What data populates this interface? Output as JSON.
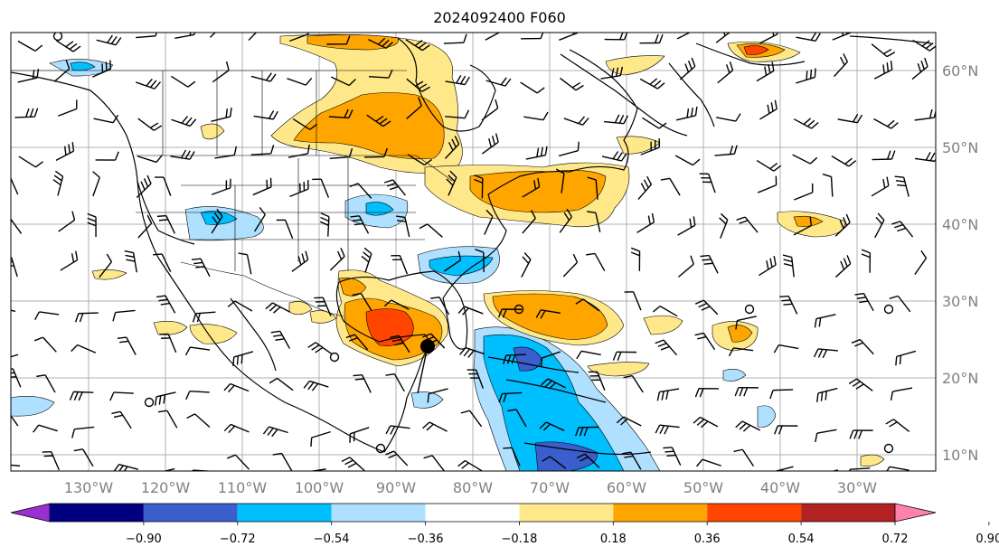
{
  "title": "2024092400 F060",
  "map": {
    "lat_labels": [
      "60°N",
      "50°N",
      "40°N",
      "30°N",
      "20°N",
      "10°N"
    ],
    "lon_labels": [
      "130°W",
      "120°W",
      "110°W",
      "100°W",
      "90°W",
      "80°W",
      "70°W",
      "60°W",
      "50°W",
      "40°W",
      "30°W"
    ]
  },
  "colorbar": {
    "tick_labels": [
      "−0.90",
      "−0.72",
      "−0.54",
      "−0.36",
      "−0.18",
      "0.18",
      "0.36",
      "0.54",
      "0.72",
      "0.90"
    ],
    "colors": [
      "#9b30d0",
      "#000080",
      "#3a5fcd",
      "#00bfff",
      "#b0e0ff",
      "#ffffff",
      "#ffe88a",
      "#ffa500",
      "#ff4500",
      "#b22222",
      "#ff82ab"
    ]
  },
  "fill_colors": {
    "light_blue": "#b0e0ff",
    "blue": "#00bfff",
    "royal": "#3a5fcd",
    "navy": "#000080",
    "yellow": "#ffe88a",
    "orange": "#ffa500",
    "red": "#ff4500",
    "dark_red": "#b22222"
  }
}
